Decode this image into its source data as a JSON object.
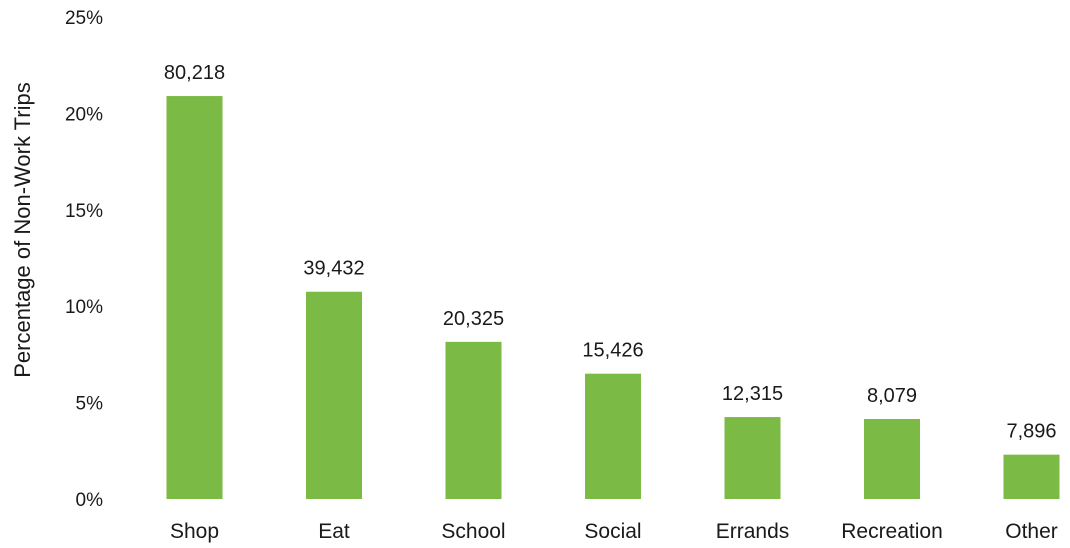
{
  "chart_data": {
    "type": "bar",
    "categories": [
      "Shop",
      "Eat",
      "School",
      "Social",
      "Errands",
      "Recreation",
      "Other"
    ],
    "values": [
      20.9,
      10.75,
      8.15,
      6.5,
      4.25,
      4.15,
      2.3
    ],
    "data_labels": [
      "80,218",
      "39,432",
      "20,325",
      "15,426",
      "12,315",
      "8,079",
      "7,896"
    ],
    "ylabel": "Percentage of Non-Work Trips",
    "xlabel": "",
    "ylim": [
      0,
      25
    ],
    "yticks": [
      0,
      5,
      10,
      15,
      20,
      25
    ],
    "ytick_labels": [
      "0%",
      "5%",
      "10%",
      "15%",
      "20%",
      "25%"
    ],
    "grid": false,
    "legend": "none",
    "bar_color": "#7aba45"
  }
}
